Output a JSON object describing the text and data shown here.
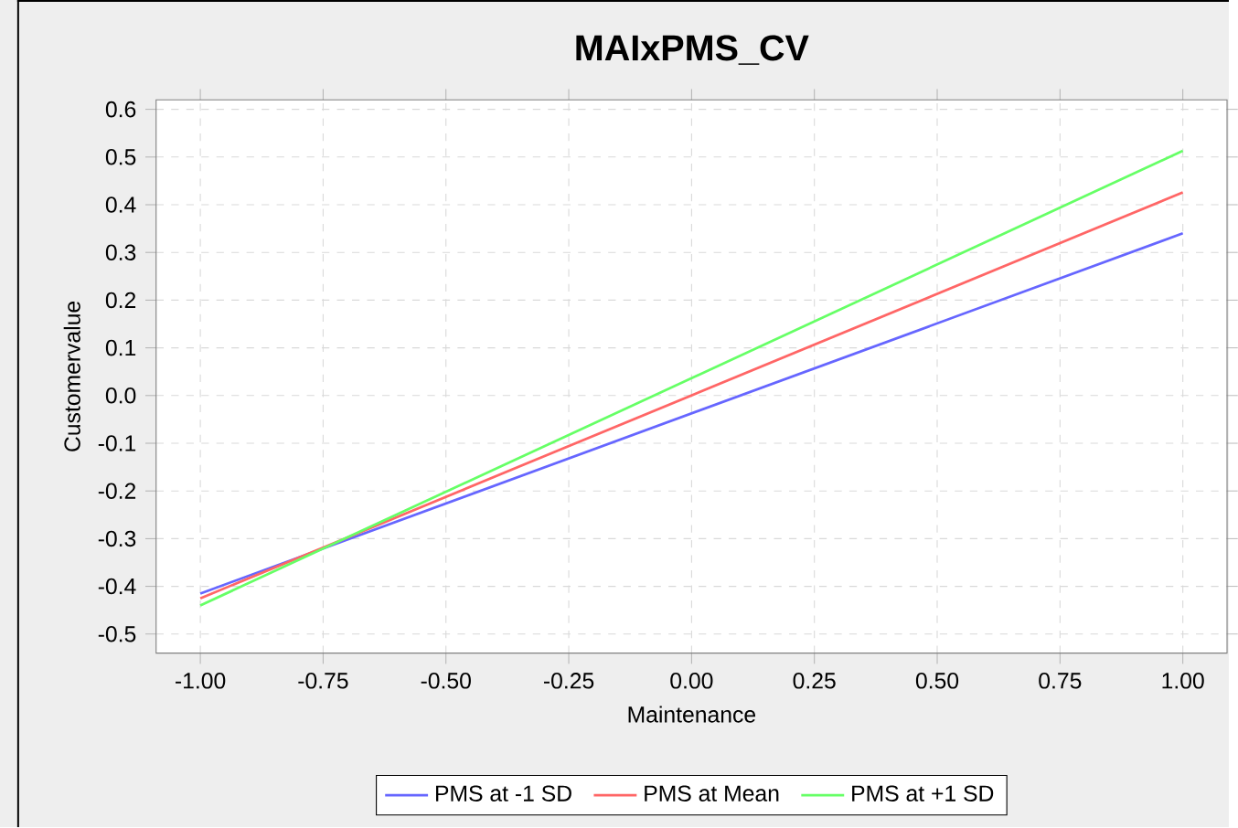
{
  "chart_data": {
    "type": "line",
    "title": "MAIxPMS_CV",
    "xlabel": "Maintenance",
    "ylabel": "Customervalue",
    "x": [
      -1.0,
      1.0
    ],
    "series": [
      {
        "name": "PMS at -1 SD",
        "color": "#6666ff",
        "values": [
          -0.415,
          0.34
        ]
      },
      {
        "name": "PMS at Mean",
        "color": "#ff6666",
        "values": [
          -0.425,
          0.426
        ]
      },
      {
        "name": "PMS at +1 SD",
        "color": "#66ff66",
        "values": [
          -0.44,
          0.513
        ]
      }
    ],
    "xlim": [
      -1.09,
      1.09
    ],
    "ylim": [
      -0.54,
      0.62
    ],
    "xticks": [
      {
        "value": -1.0,
        "label": "-1.00"
      },
      {
        "value": -0.75,
        "label": "-0.75"
      },
      {
        "value": -0.5,
        "label": "-0.50"
      },
      {
        "value": -0.25,
        "label": "-0.25"
      },
      {
        "value": 0.0,
        "label": "0.00"
      },
      {
        "value": 0.25,
        "label": "0.25"
      },
      {
        "value": 0.5,
        "label": "0.50"
      },
      {
        "value": 0.75,
        "label": "0.75"
      },
      {
        "value": 1.0,
        "label": "1.00"
      }
    ],
    "yticks": [
      0.6,
      0.5,
      0.4,
      0.3,
      0.2,
      0.1,
      {
        "value": 0.0,
        "label": "0.0"
      },
      -0.1,
      -0.2,
      -0.3,
      -0.4,
      -0.5
    ],
    "grid": true,
    "legend": "bottom",
    "marker": "none",
    "line_style": "solid"
  }
}
